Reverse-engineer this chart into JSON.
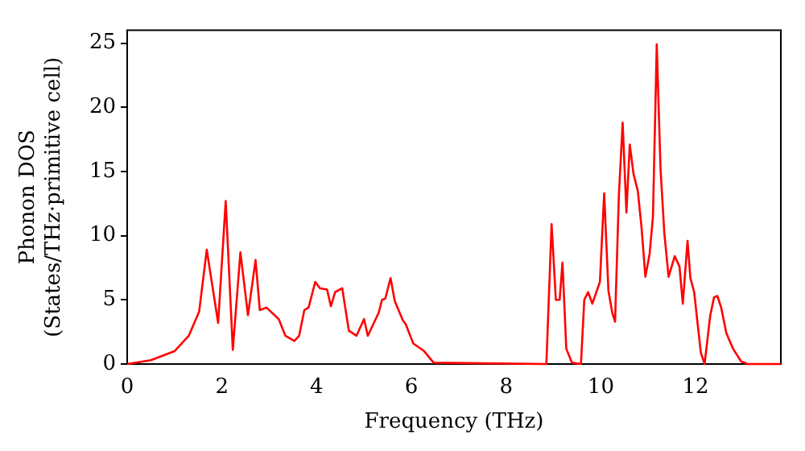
{
  "chart_data": {
    "type": "line",
    "xlabel": "Frequency (THz)",
    "ylabel": "Phonon DOS\n(States/THz·primitive cell)",
    "x": [
      0,
      0.5,
      1.0,
      1.3,
      1.52,
      1.68,
      1.92,
      2.08,
      2.23,
      2.39,
      2.55,
      2.71,
      2.8,
      2.94,
      3.2,
      3.34,
      3.53,
      3.63,
      3.74,
      3.83,
      3.97,
      4.07,
      4.22,
      4.3,
      4.39,
      4.54,
      4.68,
      4.84,
      5.0,
      5.08,
      5.31,
      5.38,
      5.45,
      5.56,
      5.65,
      5.82,
      5.88,
      6.04,
      6.27,
      6.47,
      8.85,
      8.96,
      9.05,
      9.13,
      9.19,
      9.27,
      9.39,
      9.58,
      9.65,
      9.73,
      9.82,
      9.98,
      10.07,
      10.16,
      10.24,
      10.3,
      10.38,
      10.46,
      10.54,
      10.61,
      10.69,
      10.78,
      10.86,
      10.94,
      11.03,
      11.1,
      11.18,
      11.26,
      11.34,
      11.43,
      11.56,
      11.66,
      11.73,
      11.83,
      11.89,
      11.97,
      12.11,
      12.19,
      12.31,
      12.39,
      12.46,
      12.54,
      12.65,
      12.79,
      12.96,
      13.1,
      13.8
    ],
    "series": [
      {
        "color": "#ff0000",
        "values": [
          0,
          0.3,
          1.0,
          2.2,
          4.1,
          8.9,
          3.2,
          12.7,
          1.1,
          8.7,
          3.8,
          8.1,
          4.2,
          4.4,
          3.5,
          2.2,
          1.8,
          2.2,
          4.2,
          4.4,
          6.4,
          5.9,
          5.8,
          4.5,
          5.6,
          5.9,
          2.6,
          2.2,
          3.5,
          2.2,
          4.0,
          5.0,
          5.1,
          6.7,
          4.9,
          3.4,
          3.1,
          1.6,
          1.0,
          0.1,
          0,
          10.9,
          5.0,
          5.0,
          7.9,
          1.2,
          0.1,
          0,
          5.0,
          5.6,
          4.7,
          6.4,
          13.3,
          5.7,
          4.0,
          3.3,
          13.1,
          18.8,
          11.8,
          17.1,
          14.8,
          13.5,
          10.6,
          6.8,
          8.6,
          11.5,
          24.9,
          15.2,
          10.2,
          6.8,
          8.4,
          7.6,
          4.7,
          9.6,
          6.7,
          5.6,
          0.9,
          0,
          3.8,
          5.2,
          5.3,
          4.4,
          2.4,
          1.2,
          0.2,
          0,
          0
        ]
      }
    ],
    "xlim": [
      0,
      13.8
    ],
    "xticks": [
      0,
      2,
      4,
      6,
      8,
      10,
      12
    ],
    "ylim": [
      0,
      26
    ],
    "yticks": [
      0,
      5,
      10,
      15,
      20,
      25
    ],
    "grid": false,
    "legend": false,
    "marker": "none",
    "line_style": "solid"
  }
}
